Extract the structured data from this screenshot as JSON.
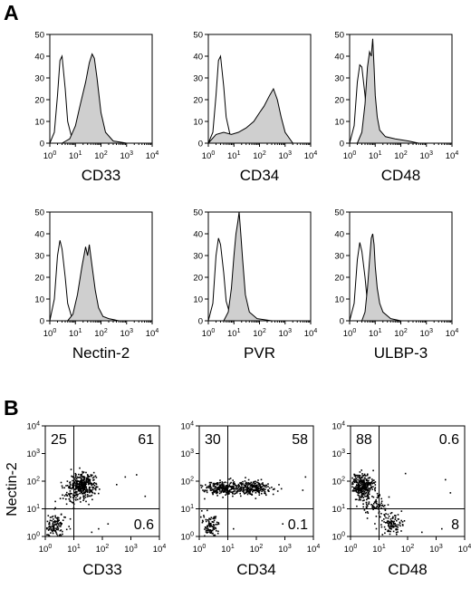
{
  "figure": {
    "panel_a_label": "A",
    "panel_b_label": "B"
  },
  "colors": {
    "fill": "#cfcfcf",
    "line": "#000000",
    "dots": "#000000"
  },
  "chart_data": [
    {
      "type": "area",
      "panel": "A",
      "xlabel": "CD33",
      "x_scale": "log",
      "xlim": [
        1,
        10000
      ],
      "ylim": [
        0,
        50
      ],
      "yticks": [
        0,
        10,
        20,
        30,
        40,
        50
      ],
      "series": [
        {
          "role": "isotype",
          "style": "outline",
          "x": [
            1,
            1.5,
            2,
            2.5,
            3,
            4,
            5,
            7,
            10,
            15,
            30
          ],
          "y": [
            0,
            5,
            22,
            38,
            40,
            25,
            10,
            3,
            1,
            0,
            0
          ]
        },
        {
          "role": "stained",
          "style": "filled",
          "x": [
            3,
            6,
            10,
            15,
            25,
            35,
            45,
            55,
            70,
            100,
            150,
            300,
            1000
          ],
          "y": [
            0,
            2,
            8,
            17,
            28,
            37,
            41,
            39,
            30,
            14,
            5,
            1,
            0
          ]
        }
      ]
    },
    {
      "type": "area",
      "panel": "A",
      "xlabel": "CD34",
      "x_scale": "log",
      "xlim": [
        1,
        10000
      ],
      "ylim": [
        0,
        50
      ],
      "yticks": [
        0,
        10,
        20,
        30,
        40,
        50
      ],
      "series": [
        {
          "role": "isotype",
          "style": "outline",
          "x": [
            1,
            1.5,
            2,
            2.5,
            3,
            4,
            5,
            7,
            10,
            15,
            30
          ],
          "y": [
            0,
            5,
            22,
            38,
            40,
            26,
            12,
            4,
            1,
            0,
            0
          ]
        },
        {
          "role": "stained",
          "style": "filled",
          "x": [
            1,
            2,
            4,
            8,
            15,
            30,
            60,
            100,
            150,
            250,
            350,
            500,
            700,
            1000,
            2000
          ],
          "y": [
            0,
            4,
            5,
            4,
            5,
            7,
            10,
            14,
            17,
            22,
            25,
            20,
            12,
            5,
            0
          ]
        }
      ]
    },
    {
      "type": "area",
      "panel": "A",
      "xlabel": "CD48",
      "x_scale": "log",
      "xlim": [
        1,
        10000
      ],
      "ylim": [
        0,
        50
      ],
      "yticks": [
        0,
        10,
        20,
        30,
        40,
        50
      ],
      "series": [
        {
          "role": "isotype",
          "style": "outline",
          "x": [
            1,
            1.5,
            2,
            2.5,
            3,
            4,
            5,
            7,
            10,
            15,
            30
          ],
          "y": [
            0,
            8,
            28,
            36,
            35,
            22,
            9,
            3,
            1,
            0,
            0
          ]
        },
        {
          "role": "stained",
          "style": "filled",
          "x": [
            2,
            3,
            4,
            5,
            6,
            7,
            8,
            9,
            10,
            12,
            15,
            25,
            60,
            200,
            500
          ],
          "y": [
            0,
            5,
            18,
            35,
            42,
            40,
            48,
            35,
            22,
            12,
            6,
            3,
            2,
            1,
            0
          ]
        }
      ]
    },
    {
      "type": "area",
      "panel": "A",
      "xlabel": "Nectin-2",
      "x_scale": "log",
      "xlim": [
        1,
        10000
      ],
      "ylim": [
        0,
        50
      ],
      "yticks": [
        0,
        10,
        20,
        30,
        40,
        50
      ],
      "series": [
        {
          "role": "isotype",
          "style": "outline",
          "x": [
            1,
            1.5,
            2,
            2.5,
            3,
            4,
            5,
            7,
            10,
            15,
            30
          ],
          "y": [
            0,
            10,
            30,
            37,
            33,
            20,
            8,
            2,
            1,
            0,
            0
          ]
        },
        {
          "role": "stained",
          "style": "filled",
          "x": [
            5,
            8,
            12,
            18,
            25,
            30,
            35,
            45,
            60,
            80,
            120,
            200,
            500
          ],
          "y": [
            0,
            3,
            12,
            25,
            34,
            30,
            35,
            25,
            14,
            6,
            2,
            1,
            0
          ]
        }
      ]
    },
    {
      "type": "area",
      "panel": "A",
      "xlabel": "PVR",
      "x_scale": "log",
      "xlim": [
        1,
        10000
      ],
      "ylim": [
        0,
        50
      ],
      "yticks": [
        0,
        10,
        20,
        30,
        40,
        50
      ],
      "series": [
        {
          "role": "isotype",
          "style": "outline",
          "x": [
            1,
            1.5,
            2,
            2.5,
            3,
            4,
            5,
            7,
            10,
            15,
            30
          ],
          "y": [
            0,
            8,
            30,
            38,
            35,
            22,
            9,
            3,
            1,
            0,
            0
          ]
        },
        {
          "role": "stained",
          "style": "filled",
          "x": [
            4,
            6,
            8,
            10,
            12,
            14,
            16,
            18,
            22,
            28,
            40,
            80,
            300
          ],
          "y": [
            0,
            4,
            15,
            30,
            40,
            45,
            50,
            42,
            28,
            12,
            4,
            1,
            0
          ]
        }
      ]
    },
    {
      "type": "area",
      "panel": "A",
      "xlabel": "ULBP-3",
      "x_scale": "log",
      "xlim": [
        1,
        10000
      ],
      "ylim": [
        0,
        50
      ],
      "yticks": [
        0,
        10,
        20,
        30,
        40,
        50
      ],
      "series": [
        {
          "role": "isotype",
          "style": "outline",
          "x": [
            1,
            1.5,
            2,
            2.5,
            3,
            4,
            5,
            7,
            10,
            15,
            30
          ],
          "y": [
            0,
            8,
            28,
            36,
            32,
            20,
            8,
            3,
            1,
            0,
            0
          ]
        },
        {
          "role": "stained",
          "style": "filled",
          "x": [
            3,
            4,
            5,
            6,
            7,
            8,
            9,
            10,
            12,
            15,
            20,
            40,
            100
          ],
          "y": [
            0,
            4,
            15,
            28,
            38,
            40,
            35,
            25,
            15,
            8,
            4,
            1,
            0
          ]
        }
      ]
    },
    {
      "type": "scatter",
      "panel": "B",
      "xlabel": "CD33",
      "ylabel": "Nectin-2",
      "x_scale": "log",
      "y_scale": "log",
      "xlim": [
        1,
        10000
      ],
      "ylim": [
        1,
        10000
      ],
      "gate_x": 10,
      "gate_y": 10,
      "quadrants": {
        "upper_left": "25",
        "upper_right": "61",
        "lower_left": "",
        "lower_right": "0.6"
      },
      "clusters": [
        {
          "center": [
            20,
            80
          ],
          "spread": [
            0.22,
            0.2
          ],
          "n": 320
        },
        {
          "center": [
            8,
            35
          ],
          "spread": [
            0.2,
            0.2
          ],
          "n": 60
        },
        {
          "center": [
            1.8,
            2.2
          ],
          "spread": [
            0.22,
            0.28
          ],
          "n": 150
        }
      ],
      "outliers": [
        [
          600,
          150
        ],
        [
          1500,
          180
        ],
        [
          300,
          80
        ],
        [
          3000,
          30
        ],
        [
          70,
          2
        ],
        [
          150,
          3
        ],
        [
          40,
          1.5
        ]
      ]
    },
    {
      "type": "scatter",
      "panel": "B",
      "xlabel": "CD34",
      "xlim": [
        1,
        10000
      ],
      "ylim": [
        1,
        10000
      ],
      "gate_x": 10,
      "gate_y": 10,
      "quadrants": {
        "upper_left": "30",
        "upper_right": "58",
        "lower_left": "",
        "lower_right": "0.1"
      },
      "clusters": [
        {
          "center": [
            5,
            60
          ],
          "spread": [
            0.3,
            0.13
          ],
          "n": 200
        },
        {
          "center": [
            60,
            60
          ],
          "spread": [
            0.4,
            0.12
          ],
          "n": 260
        },
        {
          "center": [
            2,
            2.2
          ],
          "spread": [
            0.18,
            0.25
          ],
          "n": 110
        }
      ],
      "outliers": [
        [
          4000,
          50
        ],
        [
          15,
          2
        ],
        [
          800,
          3
        ],
        [
          5000,
          150
        ]
      ]
    },
    {
      "type": "scatter",
      "panel": "B",
      "xlabel": "CD48",
      "xlim": [
        1,
        10000
      ],
      "ylim": [
        1,
        10000
      ],
      "gate_x": 10,
      "gate_y": 10,
      "quadrants": {
        "upper_left": "88",
        "upper_right": "0.6",
        "lower_left": "",
        "lower_right": "8"
      },
      "clusters": [
        {
          "center": [
            2.5,
            70
          ],
          "spread": [
            0.2,
            0.22
          ],
          "n": 320
        },
        {
          "center": [
            6,
            15
          ],
          "spread": [
            0.25,
            0.2
          ],
          "n": 80
        },
        {
          "center": [
            25,
            3
          ],
          "spread": [
            0.2,
            0.2
          ],
          "n": 110
        }
      ],
      "outliers": [
        [
          2000,
          120
        ],
        [
          3000,
          40
        ],
        [
          1500,
          2
        ],
        [
          4000,
          3
        ],
        [
          300,
          1.5
        ],
        [
          80,
          200
        ]
      ]
    }
  ]
}
